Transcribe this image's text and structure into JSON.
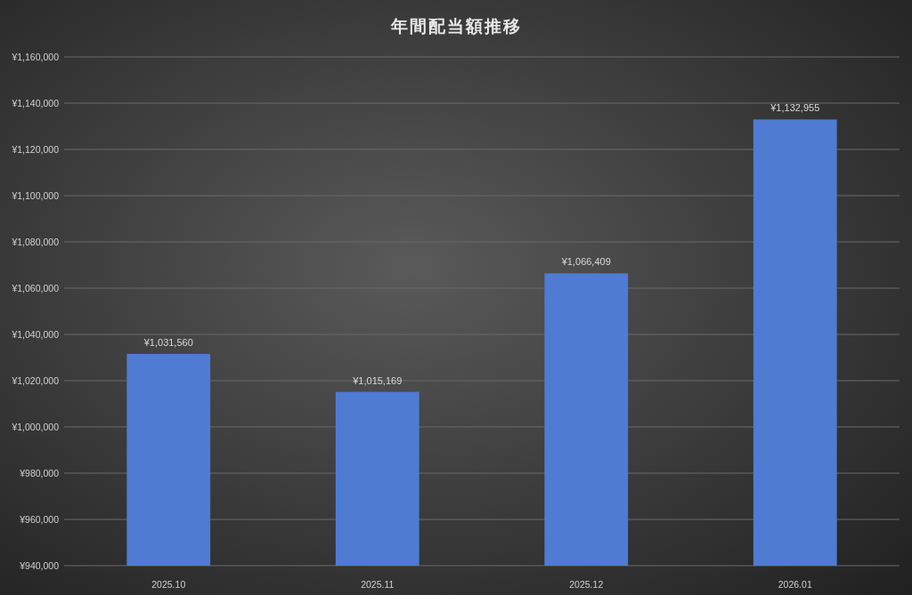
{
  "chart_data": {
    "type": "bar",
    "title": "年間配当額推移",
    "categories": [
      "2025.10",
      "2025.11",
      "2025.12",
      "2026.01"
    ],
    "values": [
      1031560,
      1015169,
      1066409,
      1132955
    ],
    "value_labels": [
      "¥1,031,560",
      "¥1,015,169",
      "¥1,066,409",
      "¥1,132,955"
    ],
    "color": "#4f7bd3",
    "ylim": [
      940000,
      1160000
    ],
    "yticks": [
      {
        "value": 940000,
        "label": "¥940,000"
      },
      {
        "value": 960000,
        "label": "¥960,000"
      },
      {
        "value": 980000,
        "label": "¥980,000"
      },
      {
        "value": 1000000,
        "label": "¥1,000,000"
      },
      {
        "value": 1020000,
        "label": "¥1,020,000"
      },
      {
        "value": 1040000,
        "label": "¥1,040,000"
      },
      {
        "value": 1060000,
        "label": "¥1,060,000"
      },
      {
        "value": 1080000,
        "label": "¥1,080,000"
      },
      {
        "value": 1100000,
        "label": "¥1,100,000"
      },
      {
        "value": 1120000,
        "label": "¥1,120,000"
      },
      {
        "value": 1140000,
        "label": "¥1,140,000"
      },
      {
        "value": 1160000,
        "label": "¥1,160,000"
      }
    ],
    "grid": "y"
  }
}
